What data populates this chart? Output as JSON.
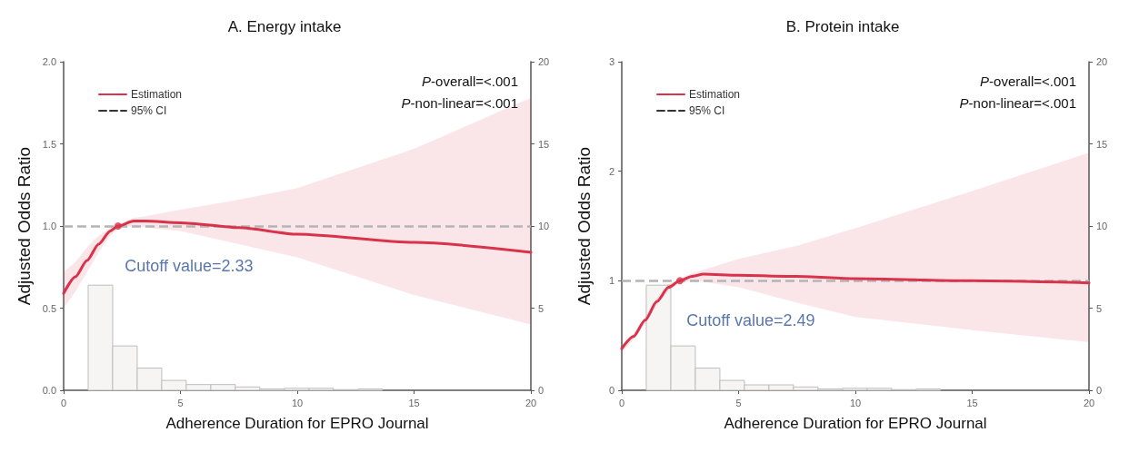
{
  "chart_data": [
    {
      "type": "line",
      "title": "A. Energy intake",
      "xlabel": "Adherence Duration for EPRO Journal",
      "ylabel": "Adjusted Odds Ratio",
      "xlim": [
        0,
        20
      ],
      "xticks": [
        0,
        5,
        10,
        15,
        20
      ],
      "ylim": [
        0,
        2
      ],
      "yticks": [
        {
          "value": 0,
          "label": "0.0"
        },
        {
          "value": 0.5,
          "label": "0.5"
        },
        {
          "value": 1,
          "label": "1.0"
        },
        {
          "value": 1.5,
          "label": "1.5"
        },
        {
          "value": 2,
          "label": "2.0"
        }
      ],
      "y2lim": [
        0,
        20
      ],
      "y2ticks": [
        0,
        5,
        10,
        15,
        20
      ],
      "x": [
        0,
        0.5,
        1,
        1.5,
        2,
        2.33,
        3,
        3.5,
        5,
        7.5,
        10,
        15,
        20
      ],
      "series": [
        {
          "name": "Estimation",
          "color": "#d9334b",
          "values": [
            0.59,
            0.69,
            0.79,
            0.89,
            0.97,
            1.0,
            1.03,
            1.03,
            1.02,
            0.99,
            0.95,
            0.9,
            0.84
          ],
          "lower": [
            0.5,
            0.6,
            0.72,
            0.84,
            0.94,
            0.985,
            1.0,
            0.99,
            0.97,
            0.89,
            0.81,
            0.58,
            0.4
          ],
          "upper": [
            0.72,
            0.78,
            0.87,
            0.94,
            0.99,
            1.01,
            1.05,
            1.06,
            1.1,
            1.16,
            1.23,
            1.47,
            1.78
          ]
        },
        {
          "name": "95% CI",
          "type": "line",
          "color": "#333333",
          "line_style": "dashed",
          "values": [
            null,
            null,
            null,
            null,
            null,
            null,
            null,
            null,
            null,
            null,
            null,
            null,
            null
          ]
        },
        {
          "type": "histogram",
          "axis": "y2",
          "color": "#f7f4f4",
          "bins": [
            1.05,
            2.1,
            3.15,
            4.2,
            5.25,
            6.3,
            7.35,
            8.4,
            9.45,
            10.5,
            11.55,
            12.6,
            13.65
          ],
          "values": [
            6.4,
            2.7,
            1.35,
            0.6,
            0.35,
            0.35,
            0.2,
            0.08,
            0.12,
            0.12,
            0.04,
            0.08
          ]
        }
      ],
      "ref_lines": [
        {
          "axis": "y",
          "value": 1,
          "color": "#b4b4b4",
          "line_style": "dashed"
        }
      ],
      "annotations": [
        {
          "text": "Cutoff value=2.33",
          "x": 2.33,
          "y": 1
        },
        "P-overall=<.001",
        "P-non-linear=<.001"
      ],
      "legend": "top left",
      "grid": false
    },
    {
      "type": "line",
      "title": "B. Protein intake",
      "xlabel": "Adherence Duration for EPRO Journal",
      "ylabel": "Adjusted Odds Ratio",
      "xlim": [
        0,
        20
      ],
      "xticks": [
        0,
        5,
        10,
        15,
        20
      ],
      "ylim": [
        0,
        3
      ],
      "yticks": [
        0,
        1,
        2,
        3
      ],
      "y2lim": [
        0,
        20
      ],
      "y2ticks": [
        0,
        5,
        10,
        15,
        20
      ],
      "x": [
        0,
        0.5,
        1,
        1.5,
        2,
        2.49,
        3,
        3.5,
        5,
        7.5,
        10,
        15,
        20
      ],
      "series": [
        {
          "name": "Estimation",
          "color": "#d9334b",
          "values": [
            0.38,
            0.49,
            0.64,
            0.81,
            0.94,
            1.0,
            1.04,
            1.06,
            1.05,
            1.04,
            1.02,
            1.0,
            0.98
          ],
          "lower": [
            0.35,
            0.46,
            0.61,
            0.78,
            0.91,
            0.98,
            1.0,
            0.99,
            0.94,
            0.8,
            0.67,
            0.55,
            0.44
          ],
          "upper": [
            0.41,
            0.52,
            0.67,
            0.84,
            0.97,
            1.02,
            1.07,
            1.1,
            1.2,
            1.32,
            1.48,
            1.82,
            2.17
          ]
        },
        {
          "name": "95% CI",
          "type": "line",
          "color": "#333333",
          "line_style": "dashed",
          "values": [
            null,
            null,
            null,
            null,
            null,
            null,
            null,
            null,
            null,
            null,
            null,
            null,
            null
          ]
        },
        {
          "type": "histogram",
          "axis": "y2",
          "color": "#f7f4f4",
          "bins": [
            1.05,
            2.1,
            3.15,
            4.2,
            5.25,
            6.3,
            7.35,
            8.4,
            9.45,
            10.5,
            11.55,
            12.6,
            13.65
          ],
          "values": [
            6.4,
            2.7,
            1.35,
            0.6,
            0.33,
            0.33,
            0.2,
            0.08,
            0.12,
            0.12,
            0.04,
            0.08
          ]
        }
      ],
      "ref_lines": [
        {
          "axis": "y",
          "value": 1,
          "color": "#b4b4b4",
          "line_style": "dashed"
        }
      ],
      "annotations": [
        {
          "text": "Cutoff value=2.49",
          "x": 2.49,
          "y": 1
        },
        "P-overall=<.001",
        "P-non-linear=<.001"
      ],
      "legend": "top left",
      "grid": false
    }
  ]
}
